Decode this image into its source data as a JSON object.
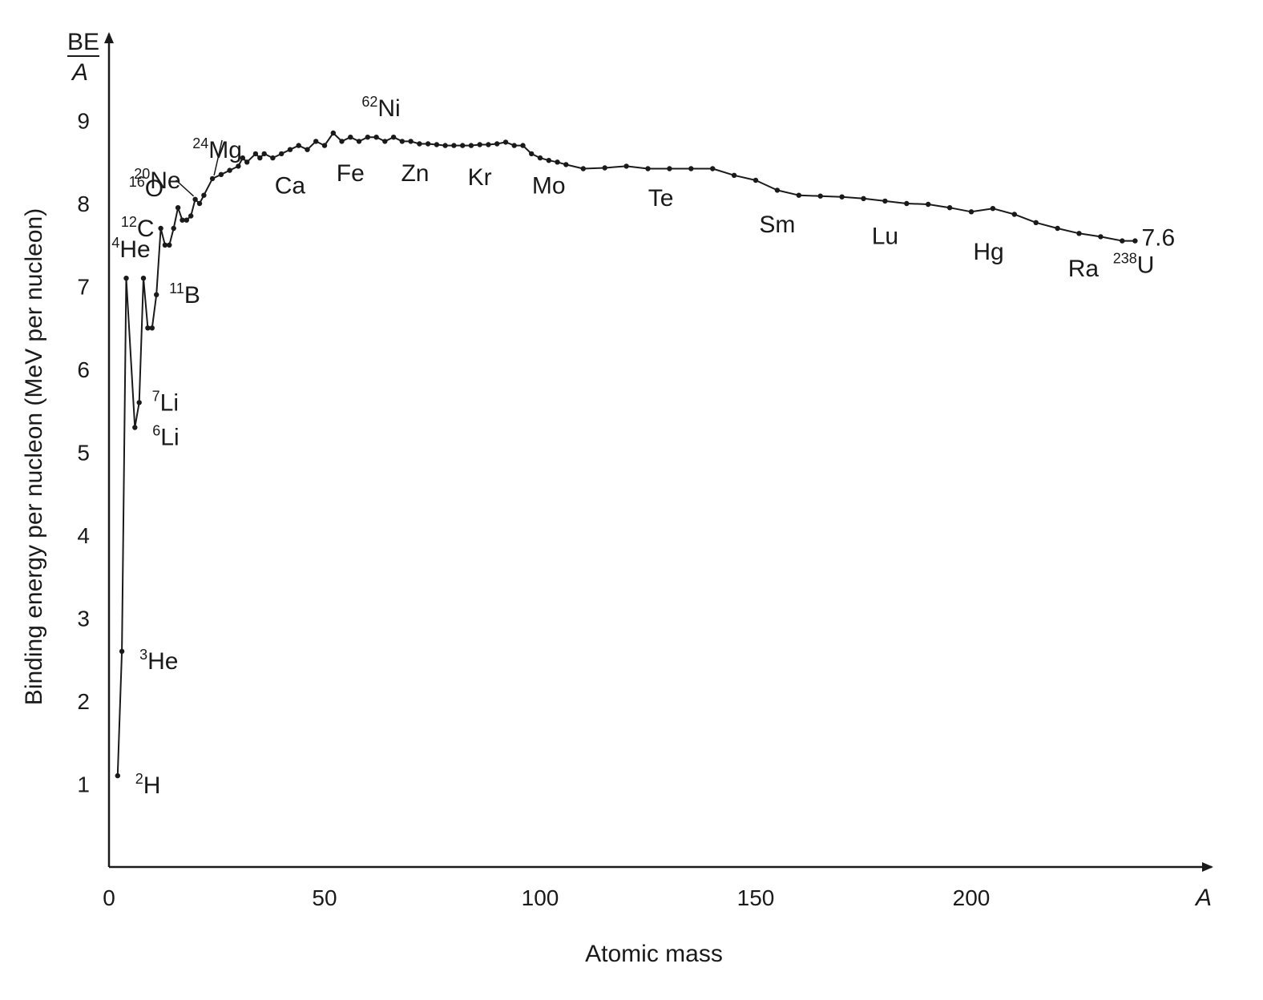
{
  "chart_data": {
    "type": "line",
    "xlabel": "Atomic mass",
    "ylabel": "Binding energy per nucleon (MeV per nucleon)",
    "x_axis_letter": "A",
    "y_axis_fraction": {
      "numerator": "BE",
      "denominator": "A"
    },
    "xlim": [
      0,
      255
    ],
    "ylim": [
      0,
      10
    ],
    "x_ticks": [
      0,
      50,
      100,
      150,
      200
    ],
    "y_ticks": [
      1,
      2,
      3,
      4,
      5,
      6,
      7,
      8,
      9
    ],
    "grid": false,
    "series": [
      {
        "x": [
          2,
          3,
          4,
          6,
          7,
          8,
          9,
          10,
          11,
          12,
          13,
          14,
          15,
          16,
          17,
          18,
          19,
          20,
          21,
          22,
          24,
          26,
          28,
          30,
          31,
          32,
          34,
          35,
          36,
          38,
          40,
          42,
          44,
          46,
          48,
          50,
          52,
          54,
          56,
          58,
          60,
          62,
          64,
          66,
          68,
          70,
          72,
          74,
          76,
          78,
          80,
          82,
          84,
          86,
          88,
          90,
          92,
          94,
          96,
          98,
          100,
          102,
          104,
          106,
          110,
          115,
          120,
          125,
          130,
          135,
          140,
          145,
          150,
          155,
          160,
          165,
          170,
          175,
          180,
          185,
          190,
          195,
          200,
          205,
          210,
          215,
          220,
          225,
          230,
          235,
          238
        ],
        "y": [
          1.1,
          2.6,
          7.1,
          5.3,
          5.6,
          7.1,
          6.5,
          6.5,
          6.9,
          7.7,
          7.5,
          7.5,
          7.7,
          7.95,
          7.8,
          7.8,
          7.85,
          8.05,
          8.0,
          8.1,
          8.3,
          8.35,
          8.4,
          8.45,
          8.55,
          8.5,
          8.6,
          8.55,
          8.6,
          8.55,
          8.6,
          8.65,
          8.7,
          8.65,
          8.75,
          8.7,
          8.85,
          8.75,
          8.8,
          8.75,
          8.8,
          8.8,
          8.75,
          8.8,
          8.75,
          8.75,
          8.72,
          8.72,
          8.71,
          8.7,
          8.7,
          8.7,
          8.7,
          8.71,
          8.71,
          8.72,
          8.74,
          8.7,
          8.7,
          8.6,
          8.55,
          8.52,
          8.5,
          8.47,
          8.42,
          8.43,
          8.45,
          8.42,
          8.42,
          8.42,
          8.42,
          8.34,
          8.28,
          8.16,
          8.1,
          8.09,
          8.08,
          8.06,
          8.03,
          8.0,
          7.99,
          7.95,
          7.9,
          7.94,
          7.87,
          7.77,
          7.7,
          7.64,
          7.6,
          7.55,
          7.55
        ]
      }
    ],
    "point_labels": [
      {
        "x": 2,
        "y": 1.1,
        "mass": "2",
        "symbol": "H",
        "pos": "right-below"
      },
      {
        "x": 3,
        "y": 2.6,
        "mass": "3",
        "symbol": "He",
        "pos": "right-below"
      },
      {
        "x": 4,
        "y": 7.1,
        "mass": "4",
        "symbol": "He",
        "pos": "above"
      },
      {
        "x": 6,
        "y": 5.3,
        "mass": "6",
        "symbol": "Li",
        "pos": "right-below"
      },
      {
        "x": 7,
        "y": 5.6,
        "mass": "7",
        "symbol": "Li",
        "pos": "right"
      },
      {
        "x": 11,
        "y": 6.9,
        "mass": "11",
        "symbol": "B",
        "pos": "right"
      },
      {
        "x": 12,
        "y": 7.7,
        "mass": "12",
        "symbol": "C",
        "pos": "left"
      },
      {
        "x": 16,
        "y": 7.95,
        "mass": "16",
        "symbol": "O",
        "pos": "left-above"
      },
      {
        "x": 20,
        "y": 8.05,
        "mass": "20",
        "symbol": "Ne",
        "pos": "left-above"
      },
      {
        "x": 24,
        "y": 8.3,
        "mass": "24",
        "symbol": "Mg",
        "pos": "above"
      },
      {
        "x": 62,
        "y": 8.8,
        "mass": "62",
        "symbol": "Ni",
        "pos": "above"
      }
    ],
    "element_labels": [
      {
        "text": "Ca",
        "x": 42,
        "y": 8.45
      },
      {
        "text": "Fe",
        "x": 56,
        "y": 8.6
      },
      {
        "text": "Zn",
        "x": 71,
        "y": 8.6
      },
      {
        "text": "Kr",
        "x": 86,
        "y": 8.55
      },
      {
        "text": "Mo",
        "x": 102,
        "y": 8.45
      },
      {
        "text": "Te",
        "x": 128,
        "y": 8.3
      },
      {
        "text": "Sm",
        "x": 155,
        "y": 7.98
      },
      {
        "text": "Lu",
        "x": 180,
        "y": 7.84
      },
      {
        "text": "Hg",
        "x": 204,
        "y": 7.65
      },
      {
        "text": "Ra",
        "x": 226,
        "y": 7.45
      }
    ],
    "end_label": {
      "mass": "238",
      "symbol": "U",
      "value_text": "7.6"
    }
  }
}
